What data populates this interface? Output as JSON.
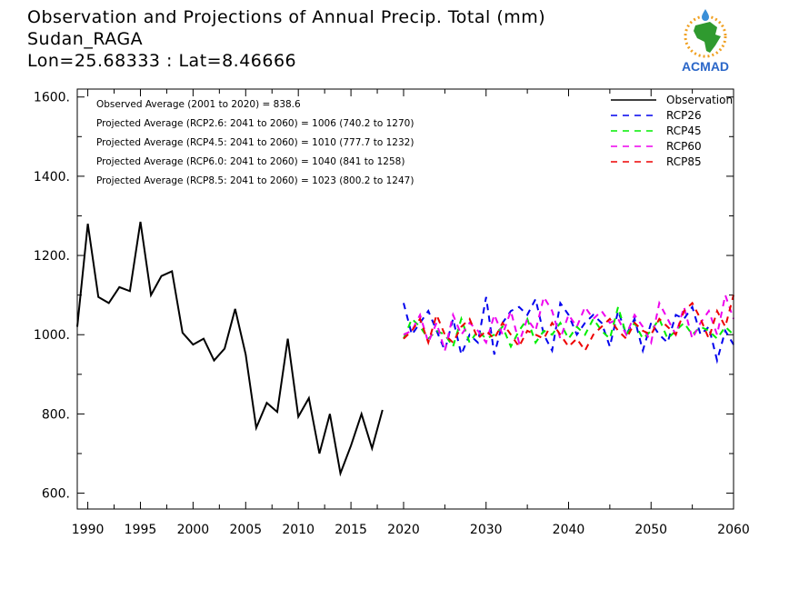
{
  "header": {
    "title": "Observation and Projections of Annual Precip. Total (mm)",
    "location": "Sudan_RAGA",
    "coords": "Lon=25.68333 : Lat=8.46666"
  },
  "logo": {
    "text": "ACMAD",
    "icon": "africa-map-icon"
  },
  "chart_data": {
    "type": "line",
    "title": "Observation and Projections of Annual Precip. Total (mm)",
    "xlabel": "",
    "ylabel": "",
    "xlim": [
      1989,
      2060
    ],
    "ylim": [
      560,
      1620
    ],
    "x_ticks": [
      1990,
      1995,
      2000,
      2005,
      2010,
      2015,
      2020,
      2030,
      2040,
      2050,
      2060
    ],
    "y_ticks": [
      600,
      800,
      1000,
      1200,
      1400,
      1600
    ],
    "y_tick_labels": [
      "600.",
      "800.",
      "1000.",
      "1200.",
      "1400.",
      "1600."
    ],
    "legend_position": "top-right",
    "annotations": [
      "Observed Average (2001 to 2020) = 838.6",
      "Projected Average (RCP2.6: 2041 to 2060) = 1006 (740.2 to 1270)",
      "Projected Average (RCP4.5: 2041 to 2060) = 1010 (777.7 to 1232)",
      "Projected Average (RCP6.0: 2041 to 2060) = 1040 (841 to 1258)",
      "Projected Average (RCP8.5: 2041 to 2060) = 1023 (800.2 to 1247)"
    ],
    "series": [
      {
        "name": "Observation",
        "color": "#000000",
        "dash": "solid",
        "x": [
          1989,
          1990,
          1991,
          1992,
          1993,
          1994,
          1995,
          1996,
          1997,
          1998,
          1999,
          2000,
          2001,
          2002,
          2003,
          2004,
          2005,
          2006,
          2007,
          2008,
          2009,
          2010,
          2011,
          2012,
          2013,
          2014,
          2015,
          2016,
          2017,
          2018,
          2019,
          2020
        ],
        "values": [
          1020,
          1280,
          1095,
          1080,
          1120,
          1110,
          1285,
          1100,
          1148,
          1160,
          1005,
          975,
          990,
          935,
          965,
          1065,
          950,
          765,
          828,
          805,
          990,
          793,
          840,
          700,
          800,
          650,
          720,
          800,
          713,
          810,
          null,
          null
        ]
      },
      {
        "name": "RCP26",
        "color": "#0000ee",
        "dash": "dashed",
        "x": [
          2020,
          2021,
          2022,
          2023,
          2024,
          2025,
          2026,
          2027,
          2028,
          2029,
          2030,
          2031,
          2032,
          2033,
          2034,
          2035,
          2036,
          2037,
          2038,
          2039,
          2040,
          2041,
          2042,
          2043,
          2044,
          2045,
          2046,
          2047,
          2048,
          2049,
          2050,
          2051,
          2052,
          2053,
          2054,
          2055,
          2056,
          2057,
          2058,
          2059,
          2060
        ],
        "values": [
          1080,
          1000,
          1030,
          1060,
          1010,
          960,
          1040,
          950,
          1000,
          980,
          1095,
          950,
          1030,
          1060,
          1070,
          1050,
          1090,
          1000,
          960,
          1080,
          1050,
          1000,
          1030,
          1050,
          1030,
          970,
          1060,
          1000,
          1040,
          960,
          1030,
          1000,
          980,
          1050,
          1040,
          1070,
          1000,
          1020,
          935,
          1010,
          975
        ]
      },
      {
        "name": "RCP45",
        "color": "#00ee00",
        "dash": "dashed",
        "x": [
          2020,
          2021,
          2022,
          2023,
          2024,
          2025,
          2026,
          2027,
          2028,
          2029,
          2030,
          2031,
          2032,
          2033,
          2034,
          2035,
          2036,
          2037,
          2038,
          2039,
          2040,
          2041,
          2042,
          2043,
          2044,
          2045,
          2046,
          2047,
          2048,
          2049,
          2050,
          2051,
          2052,
          2053,
          2054,
          2055,
          2056,
          2057,
          2058,
          2059,
          2060
        ],
        "values": [
          990,
          1040,
          1020,
          990,
          1010,
          1000,
          970,
          1040,
          980,
          1010,
          990,
          1000,
          1020,
          970,
          1010,
          1040,
          980,
          1010,
          1000,
          1030,
          990,
          1020,
          1000,
          1040,
          1010,
          990,
          1070,
          1000,
          1030,
          990,
          1010,
          1040,
          990,
          1010,
          1030,
          1000,
          1020,
          1010,
          990,
          1020,
          1000
        ]
      },
      {
        "name": "RCP60",
        "color": "#ee00ee",
        "dash": "dashed",
        "x": [
          2020,
          2021,
          2022,
          2023,
          2024,
          2025,
          2026,
          2027,
          2028,
          2029,
          2030,
          2031,
          2032,
          2033,
          2034,
          2035,
          2036,
          2037,
          2038,
          2039,
          2040,
          2041,
          2042,
          2043,
          2044,
          2045,
          2046,
          2047,
          2048,
          2049,
          2050,
          2051,
          2052,
          2053,
          2054,
          2055,
          2056,
          2057,
          2058,
          2059,
          2060
        ],
        "values": [
          1000,
          1010,
          1050,
          980,
          1030,
          960,
          1050,
          1000,
          1030,
          1010,
          980,
          1050,
          1000,
          1060,
          980,
          1040,
          1010,
          1095,
          1060,
          990,
          1050,
          1020,
          1070,
          1040,
          1060,
          1030,
          1040,
          1000,
          1050,
          1020,
          980,
          1080,
          1040,
          1000,
          1070,
          990,
          1030,
          1060,
          1000,
          1100,
          1040
        ]
      },
      {
        "name": "RCP85",
        "color": "#ee0000",
        "dash": "dashed",
        "x": [
          2020,
          2021,
          2022,
          2023,
          2024,
          2025,
          2026,
          2027,
          2028,
          2029,
          2030,
          2031,
          2032,
          2033,
          2034,
          2035,
          2036,
          2037,
          2038,
          2039,
          2040,
          2041,
          2042,
          2043,
          2044,
          2045,
          2046,
          2047,
          2048,
          2049,
          2050,
          2051,
          2052,
          2053,
          2054,
          2055,
          2056,
          2057,
          2058,
          2059,
          2060
        ],
        "values": [
          990,
          1010,
          1040,
          980,
          1050,
          1000,
          980,
          1020,
          1040,
          990,
          1010,
          990,
          1030,
          1000,
          970,
          1010,
          1000,
          990,
          1030,
          1000,
          970,
          990,
          960,
          1000,
          1020,
          1040,
          1010,
          990,
          1030,
          1010,
          1000,
          1040,
          1020,
          1000,
          1060,
          1080,
          1040,
          990,
          1060,
          1020,
          1100
        ]
      }
    ]
  }
}
